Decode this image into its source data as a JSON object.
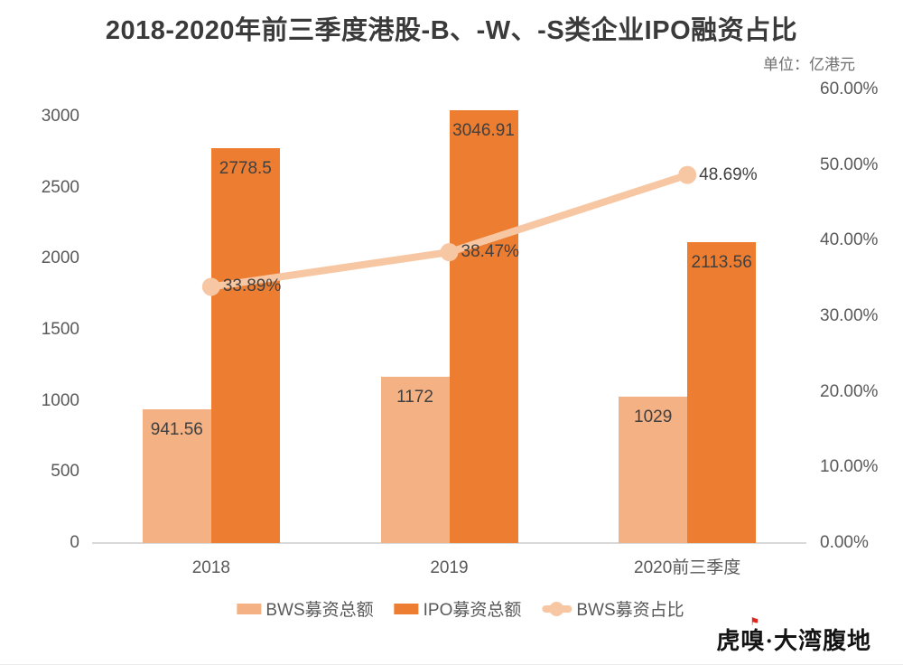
{
  "page": {
    "logo_text": "虎嗅·大湾腹地",
    "logo_flag_icon": "⚑"
  },
  "chart_data": {
    "type": "combo-bar-line",
    "title": "2018-2020年前三季度港股-B、-W、-S类企业IPO融资占比",
    "unit": "单位：亿港元",
    "categories": [
      "2018",
      "2019",
      "2020前三季度"
    ],
    "series": [
      {
        "name": "BWS募资总额",
        "type": "bar",
        "axis": "left",
        "values": [
          941.56,
          1172,
          1029
        ],
        "labels": [
          "941.56",
          "1172",
          "1029"
        ],
        "color": "#F4B183"
      },
      {
        "name": "IPO募资总额",
        "type": "bar",
        "axis": "left",
        "values": [
          2778.5,
          3046.91,
          2113.56
        ],
        "labels": [
          "2778.5",
          "3046.91",
          "2113.56"
        ],
        "color": "#ED7D31"
      },
      {
        "name": "BWS募资占比",
        "type": "line",
        "axis": "right",
        "values": [
          33.89,
          38.47,
          48.69
        ],
        "labels": [
          "33.89%",
          "38.47%",
          "48.69%"
        ],
        "color": "#F7C7A3"
      }
    ],
    "left_axis": {
      "min": 0,
      "max": 3000,
      "ticks": [
        0,
        500,
        1000,
        1500,
        2000,
        2500,
        3000
      ],
      "tick_labels": [
        "0",
        "500",
        "1000",
        "1500",
        "2000",
        "2500",
        "3000"
      ]
    },
    "right_axis": {
      "min": 0,
      "max": 60,
      "ticks": [
        0,
        10,
        20,
        30,
        40,
        50,
        60
      ],
      "tick_labels": [
        "0.00%",
        "10.00%",
        "20.00%",
        "30.00%",
        "40.00%",
        "50.00%",
        "60.00%"
      ]
    },
    "legend": [
      "BWS募资总额",
      "IPO募资总额",
      "BWS募资占比"
    ],
    "legend_position": "bottom",
    "grid": false,
    "colors": {
      "bar_light": "#F4B183",
      "bar_dark": "#ED7D31",
      "line": "#F7C7A3",
      "axis_text": "#595959",
      "label_text": "#404040",
      "axis_line": "#D9D9D9",
      "title_text": "#3A3A3A"
    }
  }
}
